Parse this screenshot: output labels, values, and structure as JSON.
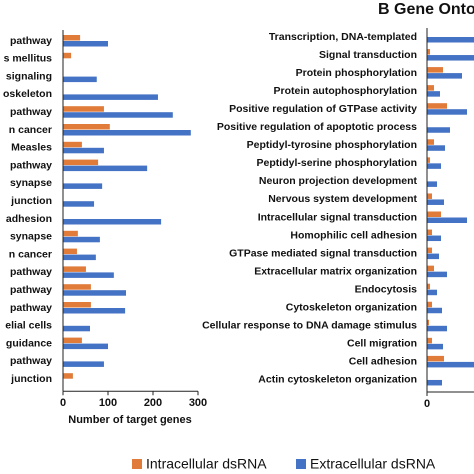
{
  "chart_data": [
    {
      "type": "hbar",
      "x_label": "Number of target genes",
      "categories": [
        "pathway",
        "s mellitus",
        "signaling",
        "oskeleton",
        "pathway",
        "n cancer",
        "Measles",
        "pathway",
        "synapse",
        "junction",
        "adhesion",
        "synapse",
        "n cancer",
        "pathway",
        "pathway",
        "pathway",
        "elial cells",
        "guidance",
        "pathway",
        "junction"
      ],
      "series": [
        {
          "name": "Intracellular dsRNA",
          "color": "#e07b39",
          "values": [
            38,
            18,
            0,
            0,
            91,
            104,
            42,
            78,
            0,
            0,
            0,
            33,
            31,
            51,
            62,
            62,
            0,
            42,
            0,
            22
          ]
        },
        {
          "name": "Extracellular dsRNA",
          "color": "#4472c4",
          "values": [
            100,
            0,
            75,
            211,
            244,
            284,
            91,
            187,
            87,
            69,
            218,
            82,
            73,
            113,
            140,
            138,
            60,
            100,
            91,
            0
          ]
        }
      ],
      "xlim": [
        0,
        300
      ],
      "xticks": [
        0,
        100,
        200,
        300
      ]
    },
    {
      "type": "hbar",
      "title": "B  Gene Ontology",
      "categories": [
        "Transcription, DNA-templated",
        "Signal transduction",
        "Protein phosphorylation",
        "Protein autophosphorylation",
        "Positive regulation of GTPase activity",
        "Positive regulation of apoptotic process",
        "Peptidyl-tyrosine phosphorylation",
        "Peptidyl-serine phosphorylation",
        "Neuron projection development",
        "Nervous system development",
        "Intracellular signal transduction",
        "Homophilic cell adhesion",
        "GTPase mediated signal transduction",
        "Extracellular matrix organization",
        "Endocytosis",
        "Cytoskeleton organization",
        "Cellular response to DNA damage stimulus",
        "Cell migration",
        "Cell adhesion",
        "Actin cytoskeleton organization"
      ],
      "series": [
        {
          "color": "#e07b39",
          "values": [
            0,
            3,
            16,
            7,
            20,
            0,
            7,
            3,
            0,
            5,
            14,
            5,
            5,
            7,
            3,
            5,
            2,
            5,
            17,
            0
          ]
        },
        {
          "color": "#4472c4",
          "values": [
            47,
            47,
            35,
            13,
            40,
            23,
            18,
            14,
            10,
            17,
            40,
            14,
            12,
            20,
            10,
            15,
            20,
            16,
            47,
            15
          ]
        }
      ],
      "xlim": [
        0,
        47
      ],
      "xticks": [
        0
      ]
    }
  ]
}
